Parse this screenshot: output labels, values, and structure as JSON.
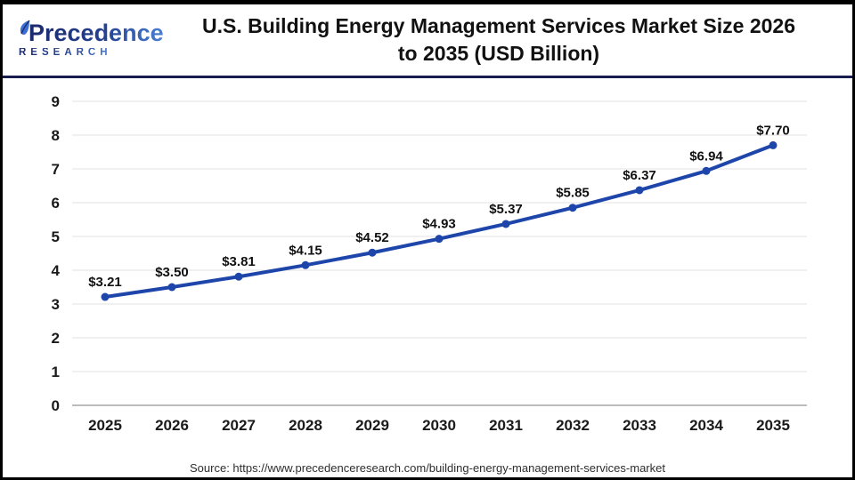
{
  "header": {
    "logo": {
      "brand_line1": "Precedence",
      "brand_line2": "RESEARCH"
    },
    "title_line1": "U.S. Building Energy Management Services Market Size 2026",
    "title_line2": "to 2035 (USD Billion)"
  },
  "chart_data": {
    "type": "line",
    "title": "U.S. Building Energy Management Services Market Size 2026 to 2035 (USD Billion)",
    "categories": [
      "2025",
      "2026",
      "2027",
      "2028",
      "2029",
      "2030",
      "2031",
      "2032",
      "2033",
      "2034",
      "2035"
    ],
    "values": [
      3.21,
      3.5,
      3.81,
      4.15,
      4.52,
      4.93,
      5.37,
      5.85,
      6.37,
      6.94,
      7.7
    ],
    "data_labels": [
      "$3.21",
      "$3.50",
      "$3.81",
      "$4.15",
      "$4.52",
      "$4.93",
      "$5.37",
      "$5.85",
      "$6.37",
      "$6.94",
      "$7.70"
    ],
    "xlabel": "",
    "ylabel": "",
    "ylim": [
      0,
      9
    ],
    "y_ticks": [
      0,
      1,
      2,
      3,
      4,
      5,
      6,
      7,
      8,
      9
    ],
    "grid": true,
    "legend": "none",
    "line_color": "#1e46aa",
    "marker": "circle",
    "gridline_color": "#e7e7e7",
    "axis_line_color": "#a6a6a6"
  },
  "footer": {
    "source": "Source: https://www.precedenceresearch.com/building-energy-management-services-market"
  }
}
